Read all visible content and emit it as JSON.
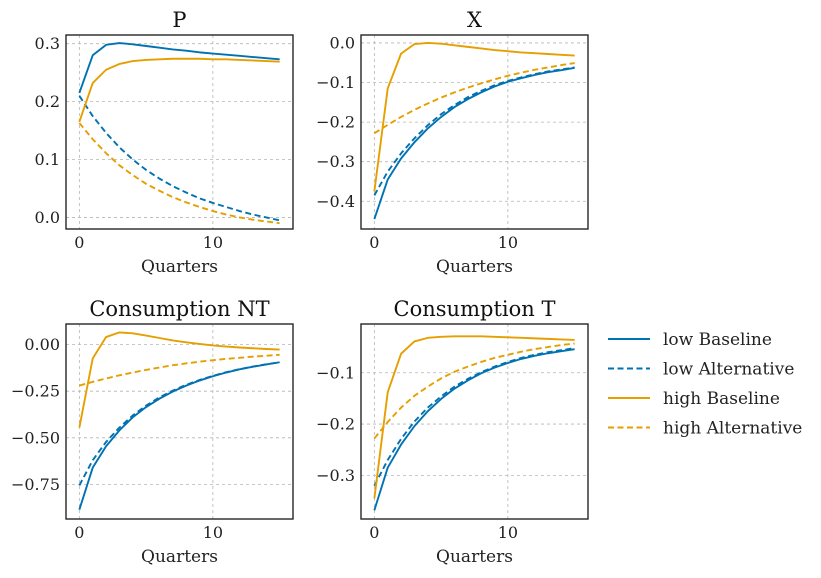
{
  "chart_data": [
    {
      "type": "line",
      "title": "P",
      "xlabel": "Quarters",
      "ylabel": "",
      "xlim": [
        -1,
        16
      ],
      "ylim": [
        -0.02,
        0.315
      ],
      "xticks": [
        0,
        10
      ],
      "xtick_labels": [
        "0",
        "10"
      ],
      "yticks": [
        0.0,
        0.1,
        0.2,
        0.3
      ],
      "ytick_labels": [
        "0.0",
        "0.1",
        "0.2",
        "0.3"
      ],
      "grid": true,
      "x": [
        0,
        1,
        2,
        3,
        4,
        5,
        6,
        7,
        8,
        9,
        10,
        11,
        12,
        13,
        14,
        15
      ],
      "series": [
        {
          "key": "low_baseline",
          "color": "#0072b2",
          "style": "solid",
          "values": [
            0.215,
            0.28,
            0.298,
            0.301,
            0.299,
            0.296,
            0.293,
            0.29,
            0.288,
            0.285,
            0.283,
            0.281,
            0.279,
            0.277,
            0.275,
            0.273
          ]
        },
        {
          "key": "low_alternative",
          "color": "#0072b2",
          "style": "dashed",
          "values": [
            0.21,
            0.175,
            0.146,
            0.121,
            0.1,
            0.082,
            0.067,
            0.054,
            0.043,
            0.033,
            0.025,
            0.018,
            0.011,
            0.005,
            0.0,
            -0.005
          ]
        },
        {
          "key": "high_baseline",
          "color": "#e69f00",
          "style": "solid",
          "values": [
            0.165,
            0.232,
            0.255,
            0.265,
            0.27,
            0.272,
            0.273,
            0.274,
            0.274,
            0.274,
            0.273,
            0.273,
            0.272,
            0.271,
            0.27,
            0.269
          ]
        },
        {
          "key": "high_alternative",
          "color": "#e69f00",
          "style": "dashed",
          "values": [
            0.163,
            0.135,
            0.111,
            0.09,
            0.073,
            0.058,
            0.046,
            0.035,
            0.026,
            0.018,
            0.011,
            0.005,
            0.0,
            -0.004,
            -0.007,
            -0.01
          ]
        }
      ]
    },
    {
      "type": "line",
      "title": "X",
      "xlabel": "Quarters",
      "ylabel": "",
      "xlim": [
        -1,
        16
      ],
      "ylim": [
        -0.47,
        0.02
      ],
      "xticks": [
        0,
        10
      ],
      "xtick_labels": [
        "0",
        "10"
      ],
      "yticks": [
        0.0,
        -0.1,
        -0.2,
        -0.3,
        -0.4
      ],
      "ytick_labels": [
        "0.0",
        "−0.1",
        "−0.2",
        "−0.3",
        "−0.4"
      ],
      "grid": true,
      "x": [
        0,
        1,
        2,
        3,
        4,
        5,
        6,
        7,
        8,
        9,
        10,
        11,
        12,
        13,
        14,
        15
      ],
      "series": [
        {
          "key": "low_baseline",
          "color": "#0072b2",
          "style": "solid",
          "values": [
            -0.445,
            -0.345,
            -0.292,
            -0.251,
            -0.216,
            -0.187,
            -0.162,
            -0.142,
            -0.125,
            -0.11,
            -0.098,
            -0.089,
            -0.081,
            -0.074,
            -0.069,
            -0.063
          ]
        },
        {
          "key": "low_alternative",
          "color": "#0072b2",
          "style": "dashed",
          "values": [
            -0.385,
            -0.325,
            -0.279,
            -0.241,
            -0.208,
            -0.18,
            -0.157,
            -0.137,
            -0.121,
            -0.107,
            -0.096,
            -0.087,
            -0.079,
            -0.072,
            -0.067,
            -0.062
          ]
        },
        {
          "key": "high_baseline",
          "color": "#e69f00",
          "style": "solid",
          "values": [
            -0.375,
            -0.115,
            -0.027,
            -0.003,
            0.0,
            -0.002,
            -0.006,
            -0.01,
            -0.014,
            -0.018,
            -0.021,
            -0.024,
            -0.026,
            -0.028,
            -0.03,
            -0.032
          ]
        },
        {
          "key": "high_alternative",
          "color": "#e69f00",
          "style": "dashed",
          "values": [
            -0.228,
            -0.207,
            -0.187,
            -0.169,
            -0.153,
            -0.138,
            -0.125,
            -0.113,
            -0.102,
            -0.092,
            -0.083,
            -0.075,
            -0.068,
            -0.062,
            -0.056,
            -0.051
          ]
        }
      ]
    },
    {
      "type": "line",
      "title": "Consumption NT",
      "xlabel": "Quarters",
      "ylabel": "",
      "xlim": [
        -1,
        16
      ],
      "ylim": [
        -0.935,
        0.11
      ],
      "xticks": [
        0,
        10
      ],
      "xtick_labels": [
        "0",
        "10"
      ],
      "yticks": [
        0.0,
        -0.25,
        -0.5,
        -0.75
      ],
      "ytick_labels": [
        "0.00",
        "−0.25",
        "−0.50",
        "−0.75"
      ],
      "grid": true,
      "x": [
        0,
        1,
        2,
        3,
        4,
        5,
        6,
        7,
        8,
        9,
        10,
        11,
        12,
        13,
        14,
        15
      ],
      "series": [
        {
          "key": "low_baseline",
          "color": "#0072b2",
          "style": "solid",
          "values": [
            -0.885,
            -0.66,
            -0.545,
            -0.46,
            -0.39,
            -0.335,
            -0.29,
            -0.252,
            -0.22,
            -0.193,
            -0.17,
            -0.15,
            -0.133,
            -0.119,
            -0.107,
            -0.095
          ]
        },
        {
          "key": "low_alternative",
          "color": "#0072b2",
          "style": "dashed",
          "values": [
            -0.755,
            -0.62,
            -0.522,
            -0.445,
            -0.38,
            -0.327,
            -0.283,
            -0.247,
            -0.216,
            -0.19,
            -0.168,
            -0.148,
            -0.132,
            -0.118,
            -0.106,
            -0.095
          ]
        },
        {
          "key": "high_baseline",
          "color": "#e69f00",
          "style": "solid",
          "values": [
            -0.445,
            -0.075,
            0.04,
            0.065,
            0.06,
            0.048,
            0.035,
            0.022,
            0.012,
            0.003,
            -0.005,
            -0.011,
            -0.016,
            -0.02,
            -0.024,
            -0.027
          ]
        },
        {
          "key": "high_alternative",
          "color": "#e69f00",
          "style": "dashed",
          "values": [
            -0.22,
            -0.2,
            -0.182,
            -0.165,
            -0.15,
            -0.136,
            -0.123,
            -0.111,
            -0.101,
            -0.092,
            -0.084,
            -0.077,
            -0.071,
            -0.065,
            -0.06,
            -0.055
          ]
        }
      ]
    },
    {
      "type": "line",
      "title": "Consumption T",
      "xlabel": "Quarters",
      "ylabel": "",
      "xlim": [
        -1,
        16
      ],
      "ylim": [
        -0.385,
        -0.005
      ],
      "xticks": [
        0,
        10
      ],
      "xtick_labels": [
        "0",
        "10"
      ],
      "yticks": [
        -0.1,
        -0.2,
        -0.3
      ],
      "ytick_labels": [
        "−0.1",
        "−0.2",
        "−0.3"
      ],
      "grid": true,
      "x": [
        0,
        1,
        2,
        3,
        4,
        5,
        6,
        7,
        8,
        9,
        10,
        11,
        12,
        13,
        14,
        15
      ],
      "series": [
        {
          "key": "low_baseline",
          "color": "#0072b2",
          "style": "solid",
          "values": [
            -0.368,
            -0.285,
            -0.24,
            -0.204,
            -0.175,
            -0.151,
            -0.131,
            -0.115,
            -0.101,
            -0.09,
            -0.081,
            -0.073,
            -0.067,
            -0.062,
            -0.058,
            -0.054
          ]
        },
        {
          "key": "low_alternative",
          "color": "#0072b2",
          "style": "dashed",
          "values": [
            -0.32,
            -0.27,
            -0.229,
            -0.195,
            -0.168,
            -0.146,
            -0.127,
            -0.112,
            -0.099,
            -0.088,
            -0.079,
            -0.071,
            -0.065,
            -0.06,
            -0.056,
            -0.052
          ]
        },
        {
          "key": "high_baseline",
          "color": "#e69f00",
          "style": "solid",
          "values": [
            -0.345,
            -0.138,
            -0.063,
            -0.039,
            -0.032,
            -0.03,
            -0.029,
            -0.029,
            -0.029,
            -0.03,
            -0.031,
            -0.032,
            -0.033,
            -0.034,
            -0.035,
            -0.036
          ]
        },
        {
          "key": "high_alternative",
          "color": "#e69f00",
          "style": "dashed",
          "values": [
            -0.228,
            -0.196,
            -0.168,
            -0.145,
            -0.127,
            -0.111,
            -0.098,
            -0.088,
            -0.079,
            -0.071,
            -0.065,
            -0.059,
            -0.054,
            -0.05,
            -0.046,
            -0.043
          ]
        }
      ]
    }
  ],
  "legend": {
    "placement": "right",
    "items": [
      {
        "label": "low Baseline",
        "color": "#0072b2",
        "style": "solid"
      },
      {
        "label": "low Alternative",
        "color": "#0072b2",
        "style": "dashed"
      },
      {
        "label": "high Baseline",
        "color": "#e69f00",
        "style": "solid"
      },
      {
        "label": "high Alternative",
        "color": "#e69f00",
        "style": "dashed"
      }
    ]
  }
}
